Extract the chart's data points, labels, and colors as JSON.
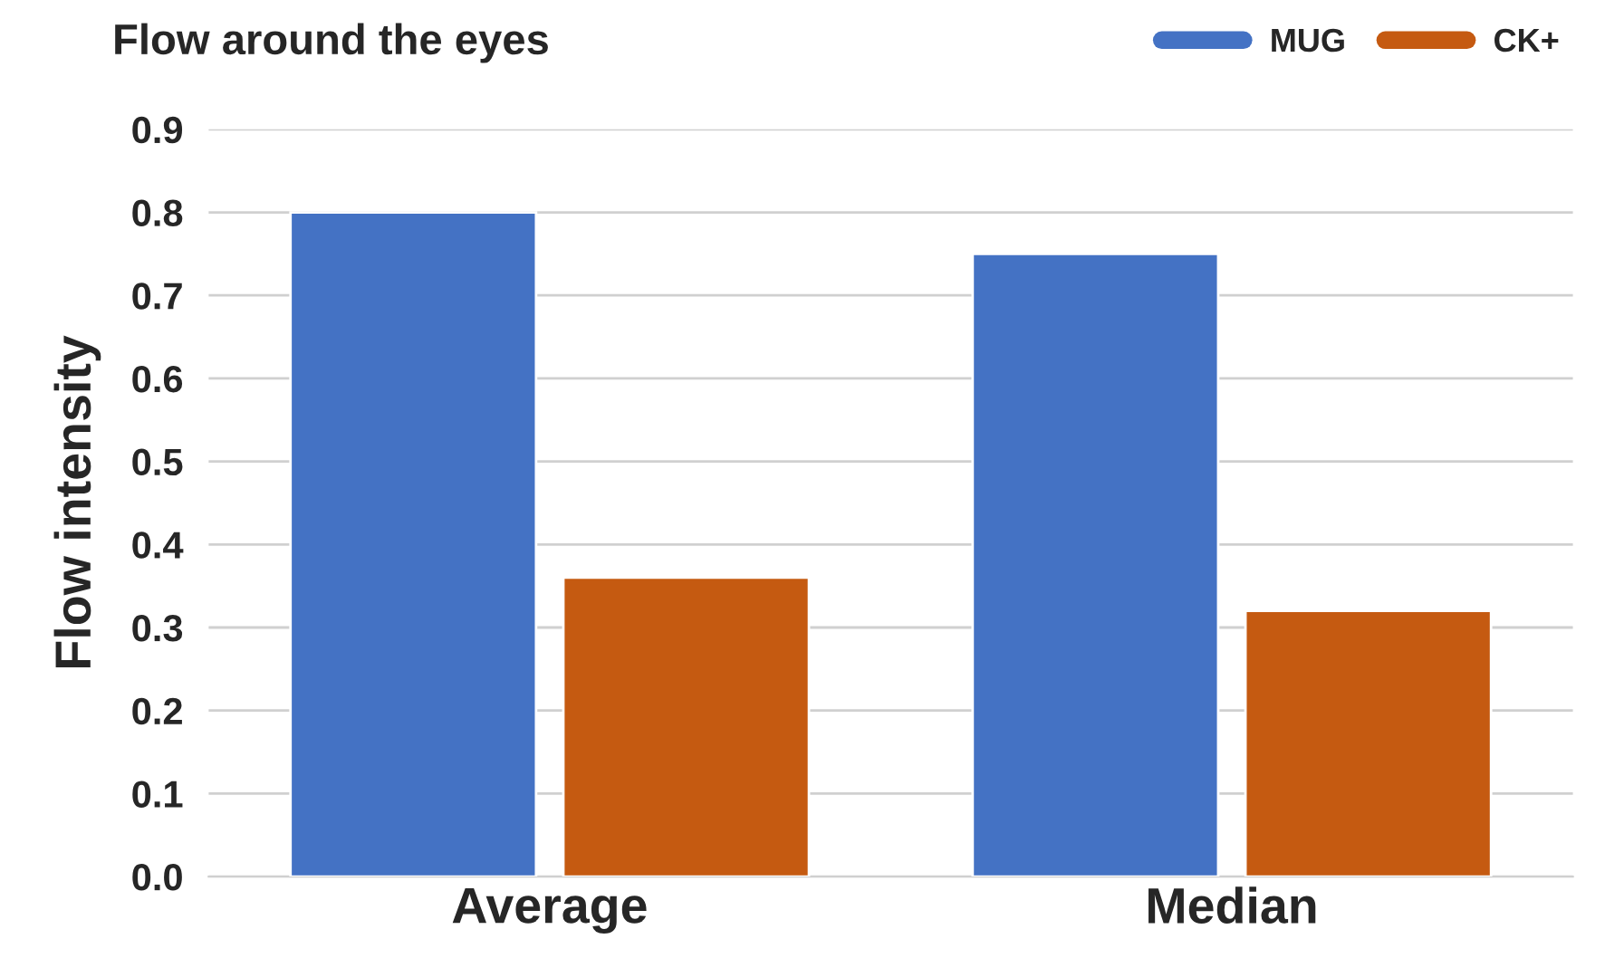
{
  "chart_data": {
    "type": "bar",
    "title": "Flow around the eyes",
    "ylabel": "Flow intensity",
    "categories": [
      "Average",
      "Median"
    ],
    "series": [
      {
        "name": "MUG",
        "color": "#4472c4",
        "values": [
          0.8,
          0.75
        ]
      },
      {
        "name": "CK+",
        "color": "#c55a11",
        "values": [
          0.36,
          0.32
        ]
      }
    ],
    "ylim": [
      0,
      0.9
    ],
    "yticks": [
      {
        "value": 0,
        "label": "0.0"
      },
      0.1,
      0.2,
      0.3,
      0.4,
      0.5,
      0.6,
      0.7,
      0.8,
      0.9
    ],
    "grid": "y",
    "legend": "top right"
  }
}
